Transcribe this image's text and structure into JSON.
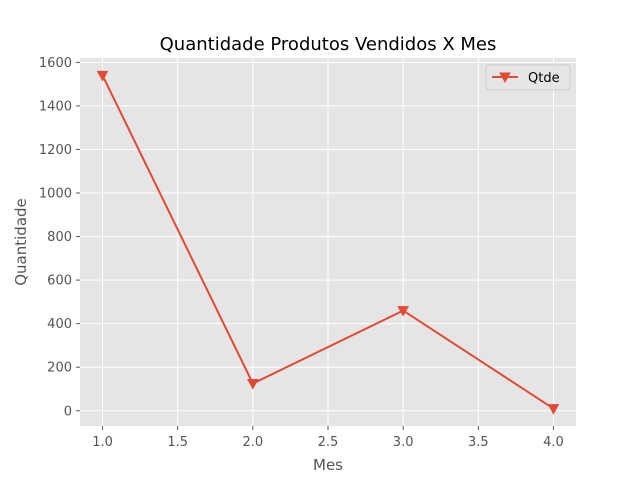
{
  "chart_data": {
    "type": "line",
    "title": "Quantidade Produtos Vendidos X Mes",
    "xlabel": "Mes",
    "ylabel": "Quantidade",
    "x": [
      1.0,
      2.0,
      3.0,
      4.0
    ],
    "series": [
      {
        "name": "Qtde",
        "values": [
          1540,
          125,
          460,
          10
        ],
        "color": "#E24A33",
        "marker": "triangle-down"
      }
    ],
    "xlim": [
      0.85,
      4.15
    ],
    "ylim": [
      -70,
      1620
    ],
    "xticks": [
      "1.0",
      "1.5",
      "2.0",
      "2.5",
      "3.0",
      "3.5",
      "4.0"
    ],
    "xtick_values": [
      1.0,
      1.5,
      2.0,
      2.5,
      3.0,
      3.5,
      4.0
    ],
    "yticks": [
      "0",
      "200",
      "400",
      "600",
      "800",
      "1000",
      "1200",
      "1400",
      "1600"
    ],
    "ytick_values": [
      0,
      200,
      400,
      600,
      800,
      1000,
      1200,
      1400,
      1600
    ],
    "grid": true,
    "legend_position": "top-right",
    "style": {
      "plot_background": "#E5E5E5",
      "grid_color": "#FFFFFF",
      "tick_label_color": "#555555",
      "title_color": "#000000"
    }
  }
}
